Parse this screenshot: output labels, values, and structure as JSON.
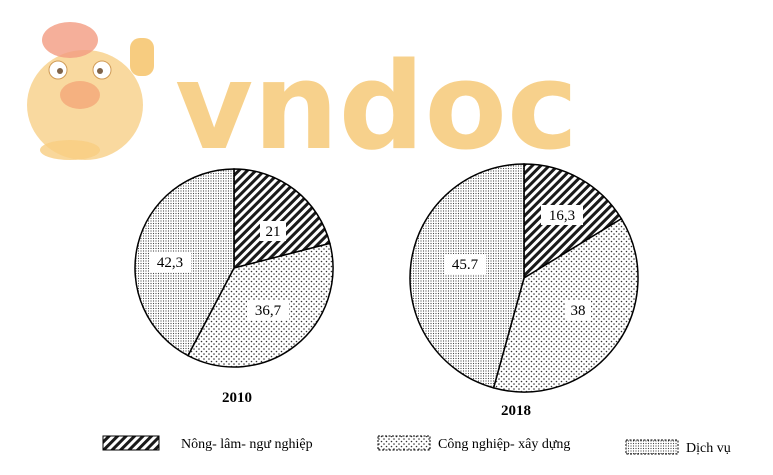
{
  "watermark": {
    "text": "vndoc",
    "color": "#f6c46a"
  },
  "chart_data": [
    {
      "type": "pie",
      "title": "2010",
      "series": [
        {
          "name": "Nông- lâm- ngư nghiệp",
          "value": 21,
          "label": "21"
        },
        {
          "name": "Công nghiệp- xây dựng",
          "value": 36.7,
          "label": "36,7"
        },
        {
          "name": "Dịch vụ",
          "value": 42.3,
          "label": "42,3"
        }
      ]
    },
    {
      "type": "pie",
      "title": "2018",
      "series": [
        {
          "name": "Nông- lâm- ngư nghiệp",
          "value": 16.3,
          "label": "16,3"
        },
        {
          "name": "Công nghiệp- xây dựng",
          "value": 38,
          "label": "38"
        },
        {
          "name": "Dịch vụ",
          "value": 45.7,
          "label": "45.7"
        }
      ]
    }
  ],
  "legend": [
    {
      "label": "Nông- lâm- ngư nghiệp",
      "pattern": "hatch"
    },
    {
      "label": "Công nghiệp- xây dựng",
      "pattern": "dots"
    },
    {
      "label": "Dịch vụ",
      "pattern": "grid"
    }
  ]
}
